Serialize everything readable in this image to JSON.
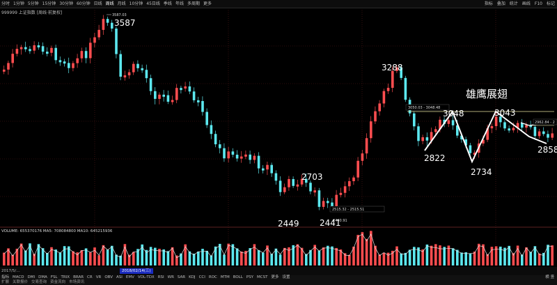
{
  "topbar": {
    "periods": [
      "分时",
      "1分钟",
      "5分钟",
      "15分钟",
      "30分钟",
      "60分钟",
      "日线",
      "周线",
      "月线",
      "10分钟",
      "45日线",
      "季线",
      "年线",
      "多周期",
      "更多"
    ],
    "active_index": 7,
    "right_tools": [
      "指标",
      "叠加",
      "统计",
      "画线",
      "F10",
      "标记"
    ]
  },
  "security_label": "999999 上证指数 [周线·前复权]",
  "price_labels": {
    "high": "3587.03",
    "range_box": "3050.03 - 3048.48",
    "low_box": "2515.32 - 2515.51",
    "low_price": "2440.91",
    "right_box": "2962.84 - 2"
  },
  "annotations": {
    "title": "雄鹰展翅",
    "p3587": "3587",
    "p3288": "3288",
    "p2703": "2703",
    "p2449": "2449",
    "p2441": "2441",
    "p3048": "3048",
    "p2822": "2822",
    "p2734": "2734",
    "p3043": "3043",
    "p2858": "2858"
  },
  "volume_label": "VOLUME: 655370176  MA5: 708084800  MA10: 645215936",
  "axis": {
    "start_label": "2017/5/…",
    "date_label": "2018/02/14(三)"
  },
  "indicators": {
    "row1": [
      "指标",
      "MACD",
      "DMI",
      "DMA",
      "FSL",
      "TRIX",
      "BRAR",
      "CR",
      "VR",
      "OBV",
      "ASI",
      "EMV",
      "VOL-TDX",
      "RSI",
      "WR",
      "SAR",
      "KDJ",
      "CCI",
      "ROC",
      "MTM",
      "BOLL",
      "PSY",
      "MCST",
      "更多",
      "设置"
    ],
    "row2": [
      "扩展",
      "关联报价",
      "交易查询",
      "资金流向",
      "市场资讯"
    ],
    "pager": "横 竖"
  },
  "colors": {
    "up": "#ff4d4f",
    "down": "#5ce8ef",
    "ma": "#ffffff",
    "guide": "#e8e6a0"
  }
}
